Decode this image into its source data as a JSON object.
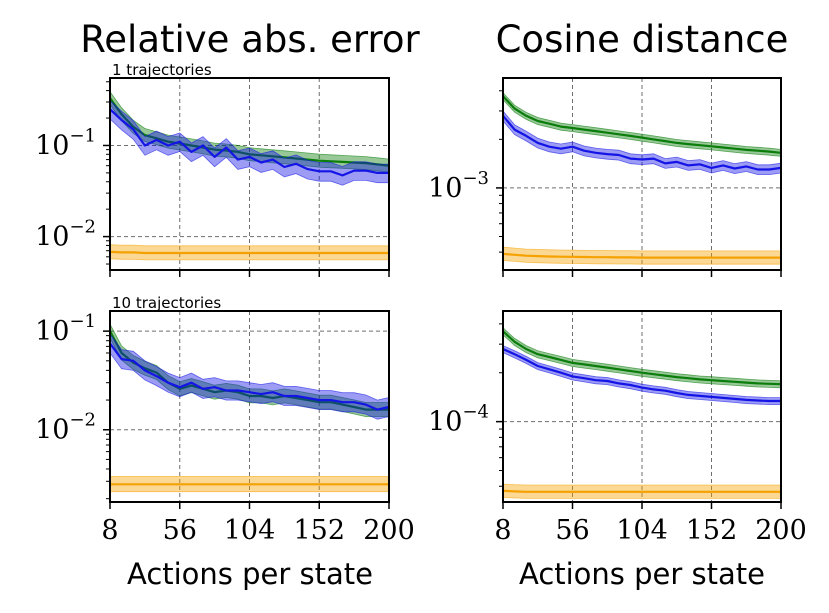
{
  "columns": [
    "Relative abs. error",
    "Cosine distance"
  ],
  "xlabel": "Actions per state",
  "colors": {
    "green": "#0a7d0a",
    "blue": "#1414e6",
    "orange": "#f5a100"
  },
  "chart_data": [
    {
      "type": "line",
      "title": "Relative abs. error",
      "annotation": "1 trajectories",
      "xlabel": "",
      "yscale": "log",
      "xlim": [
        8,
        200
      ],
      "ylim": [
        0.0043,
        0.55
      ],
      "xticks": [
        8,
        56,
        104,
        152,
        200
      ],
      "yticks": [
        {
          "value": 0.1,
          "mantissa": "10",
          "exponent": "−1"
        },
        {
          "value": 0.01,
          "mantissa": "10",
          "exponent": "−2"
        }
      ],
      "grid": true,
      "x": [
        8,
        16,
        24,
        32,
        40,
        48,
        56,
        64,
        72,
        80,
        88,
        96,
        104,
        112,
        120,
        128,
        136,
        144,
        152,
        160,
        168,
        176,
        184,
        192,
        200
      ],
      "series": [
        {
          "color": "green",
          "values": [
            0.33,
            0.22,
            0.16,
            0.13,
            0.12,
            0.11,
            0.105,
            0.1,
            0.095,
            0.09,
            0.088,
            0.085,
            0.08,
            0.078,
            0.076,
            0.074,
            0.072,
            0.07,
            0.068,
            0.067,
            0.066,
            0.065,
            0.064,
            0.062,
            0.06
          ],
          "band": [
            0.85,
            1.18
          ]
        },
        {
          "color": "blue",
          "values": [
            0.25,
            0.19,
            0.15,
            0.1,
            0.115,
            0.1,
            0.11,
            0.085,
            0.1,
            0.075,
            0.095,
            0.07,
            0.075,
            0.065,
            0.07,
            0.058,
            0.063,
            0.055,
            0.052,
            0.052,
            0.047,
            0.053,
            0.053,
            0.05,
            0.05
          ],
          "band": [
            0.78,
            1.25
          ]
        },
        {
          "color": "orange",
          "values": [
            0.0068,
            0.0067,
            0.0067,
            0.0066,
            0.0066,
            0.0066,
            0.0066,
            0.0066,
            0.0066,
            0.0066,
            0.0066,
            0.0066,
            0.0066,
            0.0066,
            0.0066,
            0.0066,
            0.0066,
            0.0066,
            0.0066,
            0.0066,
            0.0066,
            0.0066,
            0.0066,
            0.0066,
            0.0066
          ],
          "band": [
            0.84,
            1.2
          ]
        }
      ]
    },
    {
      "type": "line",
      "title": "Cosine distance",
      "xlabel": "",
      "yscale": "log",
      "xlim": [
        8,
        200
      ],
      "ylim": [
        0.00031,
        0.0048
      ],
      "xticks": [
        8,
        56,
        104,
        152,
        200
      ],
      "yticks": [
        {
          "value": 0.001,
          "mantissa": "10",
          "exponent": "−3"
        }
      ],
      "grid": true,
      "x": [
        8,
        16,
        24,
        32,
        40,
        48,
        56,
        64,
        72,
        80,
        88,
        96,
        104,
        112,
        120,
        128,
        136,
        144,
        152,
        160,
        168,
        176,
        184,
        192,
        200
      ],
      "series": [
        {
          "color": "green",
          "values": [
            0.0037,
            0.0031,
            0.0028,
            0.0026,
            0.0025,
            0.0024,
            0.00235,
            0.0023,
            0.00225,
            0.0022,
            0.00215,
            0.0021,
            0.00205,
            0.002,
            0.00195,
            0.0019,
            0.00187,
            0.00184,
            0.00181,
            0.00178,
            0.00175,
            0.00172,
            0.0017,
            0.00168,
            0.00165
          ],
          "band": [
            0.95,
            1.05
          ]
        },
        {
          "color": "blue",
          "values": [
            0.0028,
            0.0023,
            0.0021,
            0.0019,
            0.0018,
            0.00175,
            0.0018,
            0.0017,
            0.00165,
            0.00162,
            0.0016,
            0.00152,
            0.0015,
            0.00152,
            0.00142,
            0.00145,
            0.00138,
            0.0014,
            0.00133,
            0.00138,
            0.00132,
            0.00136,
            0.0013,
            0.0013,
            0.00133
          ],
          "band": [
            0.93,
            1.07
          ]
        },
        {
          "color": "orange",
          "values": [
            0.00039,
            0.000385,
            0.00038,
            0.000378,
            0.000376,
            0.000375,
            0.000374,
            0.000373,
            0.000372,
            0.000372,
            0.000371,
            0.000371,
            0.00037,
            0.00037,
            0.00037,
            0.00037,
            0.00037,
            0.00037,
            0.00037,
            0.00037,
            0.00037,
            0.00037,
            0.00037,
            0.00037,
            0.00037
          ],
          "band": [
            0.91,
            1.1
          ]
        }
      ]
    },
    {
      "type": "line",
      "annotation": "10 trajectories",
      "xlabel": "Actions per state",
      "yscale": "log",
      "xlim": [
        8,
        200
      ],
      "ylim": [
        0.00185,
        0.16
      ],
      "xticks": [
        8,
        56,
        104,
        152,
        200
      ],
      "yticks": [
        {
          "value": 0.1,
          "mantissa": "10",
          "exponent": "−1"
        },
        {
          "value": 0.01,
          "mantissa": "10",
          "exponent": "−2"
        }
      ],
      "grid": true,
      "x": [
        8,
        16,
        24,
        32,
        40,
        48,
        56,
        64,
        72,
        80,
        88,
        96,
        104,
        112,
        120,
        128,
        136,
        144,
        152,
        160,
        168,
        176,
        184,
        192,
        200
      ],
      "series": [
        {
          "color": "green",
          "values": [
            0.1,
            0.06,
            0.048,
            0.042,
            0.038,
            0.03,
            0.026,
            0.028,
            0.026,
            0.024,
            0.025,
            0.024,
            0.022,
            0.022,
            0.021,
            0.022,
            0.021,
            0.02,
            0.019,
            0.019,
            0.018,
            0.017,
            0.016,
            0.016,
            0.016
          ],
          "band": [
            0.85,
            1.18
          ]
        },
        {
          "color": "blue",
          "values": [
            0.075,
            0.052,
            0.05,
            0.04,
            0.035,
            0.03,
            0.027,
            0.03,
            0.026,
            0.027,
            0.025,
            0.025,
            0.024,
            0.023,
            0.024,
            0.022,
            0.022,
            0.021,
            0.02,
            0.02,
            0.019,
            0.019,
            0.018,
            0.016,
            0.017
          ],
          "band": [
            0.8,
            1.25
          ]
        },
        {
          "color": "orange",
          "values": [
            0.0028,
            0.0028,
            0.0028,
            0.0028,
            0.0028,
            0.0028,
            0.0028,
            0.0028,
            0.0028,
            0.0028,
            0.0028,
            0.0028,
            0.0028,
            0.0028,
            0.0028,
            0.0028,
            0.0028,
            0.0028,
            0.0028,
            0.0028,
            0.0028,
            0.0028,
            0.0028,
            0.0028,
            0.0028
          ],
          "band": [
            0.84,
            1.2
          ]
        }
      ]
    },
    {
      "type": "line",
      "xlabel": "Actions per state",
      "yscale": "log",
      "xlim": [
        8,
        200
      ],
      "ylim": [
        3.2e-05,
        0.00048
      ],
      "xticks": [
        8,
        56,
        104,
        152,
        200
      ],
      "yticks": [
        {
          "value": 0.0001,
          "mantissa": "10",
          "exponent": "−4"
        }
      ],
      "grid": true,
      "x": [
        8,
        16,
        24,
        32,
        40,
        48,
        56,
        64,
        72,
        80,
        88,
        96,
        104,
        112,
        120,
        128,
        136,
        144,
        152,
        160,
        168,
        176,
        184,
        192,
        200
      ],
      "series": [
        {
          "color": "green",
          "values": [
            0.00036,
            0.00031,
            0.00028,
            0.00026,
            0.00025,
            0.00024,
            0.00023,
            0.000225,
            0.00022,
            0.000215,
            0.00021,
            0.000205,
            0.0002,
            0.000196,
            0.000192,
            0.000188,
            0.000185,
            0.000182,
            0.00018,
            0.000178,
            0.000176,
            0.000174,
            0.000172,
            0.000171,
            0.00017
          ],
          "band": [
            0.95,
            1.05
          ]
        },
        {
          "color": "blue",
          "values": [
            0.00028,
            0.00026,
            0.00024,
            0.00022,
            0.00021,
            0.0002,
            0.00019,
            0.000185,
            0.00018,
            0.000178,
            0.000172,
            0.000168,
            0.000162,
            0.000158,
            0.000155,
            0.00015,
            0.000146,
            0.000144,
            0.000142,
            0.00014,
            0.000138,
            0.000136,
            0.000135,
            0.000134,
            0.000134
          ],
          "band": [
            0.95,
            1.05
          ]
        },
        {
          "color": "orange",
          "values": [
            3.75e-05,
            3.72e-05,
            3.7e-05,
            3.7e-05,
            3.7e-05,
            3.7e-05,
            3.7e-05,
            3.7e-05,
            3.7e-05,
            3.7e-05,
            3.7e-05,
            3.7e-05,
            3.7e-05,
            3.7e-05,
            3.7e-05,
            3.7e-05,
            3.7e-05,
            3.7e-05,
            3.7e-05,
            3.7e-05,
            3.7e-05,
            3.7e-05,
            3.7e-05,
            3.7e-05,
            3.7e-05
          ],
          "band": [
            0.91,
            1.1
          ]
        }
      ]
    }
  ]
}
